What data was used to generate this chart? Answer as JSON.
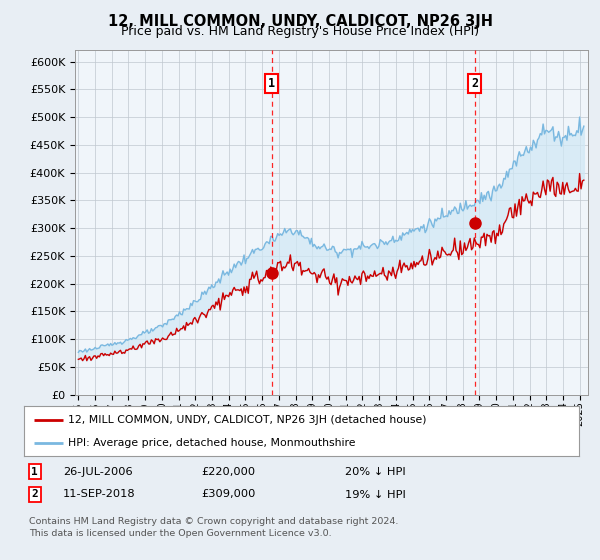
{
  "title": "12, MILL COMMON, UNDY, CALDICOT, NP26 3JH",
  "subtitle": "Price paid vs. HM Land Registry's House Price Index (HPI)",
  "ylim": [
    0,
    620000
  ],
  "yticks": [
    0,
    50000,
    100000,
    150000,
    200000,
    250000,
    300000,
    350000,
    400000,
    450000,
    500000,
    550000,
    600000
  ],
  "ytick_labels": [
    "£0",
    "£50K",
    "£100K",
    "£150K",
    "£200K",
    "£250K",
    "£300K",
    "£350K",
    "£400K",
    "£450K",
    "£500K",
    "£550K",
    "£600K"
  ],
  "x_start_year": 1995,
  "x_end_year": 2025,
  "hpi_color": "#7ab8e0",
  "hpi_fill_color": "#d0e8f5",
  "price_color": "#cc0000",
  "marker1_date": 2006.56,
  "marker1_price": 220000,
  "marker1_label": "26-JUL-2006",
  "marker1_text": "£220,000",
  "marker1_note": "20% ↓ HPI",
  "marker2_date": 2018.71,
  "marker2_price": 309000,
  "marker2_label": "11-SEP-2018",
  "marker2_text": "£309,000",
  "marker2_note": "19% ↓ HPI",
  "legend_line1": "12, MILL COMMON, UNDY, CALDICOT, NP26 3JH (detached house)",
  "legend_line2": "HPI: Average price, detached house, Monmouthshire",
  "footer1": "Contains HM Land Registry data © Crown copyright and database right 2024.",
  "footer2": "This data is licensed under the Open Government Licence v3.0.",
  "bg_color": "#e8eef4",
  "plot_bg": "#f0f5fa",
  "grid_color": "#c0c8d0"
}
